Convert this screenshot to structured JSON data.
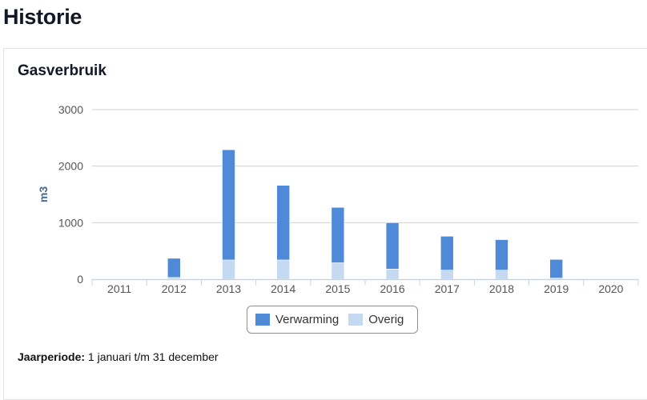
{
  "page": {
    "title": "Historie"
  },
  "card": {
    "title": "Gasverbruik"
  },
  "legend": {
    "items": [
      {
        "label": "Verwarming",
        "color": "#4f8ad8"
      },
      {
        "label": "Overig",
        "color": "#c5d9f3"
      }
    ]
  },
  "footnote": {
    "label": "Jaarperiode:",
    "value": " 1 januari t/m 31 december"
  },
  "chart_data": {
    "type": "bar",
    "stacked": true,
    "categories": [
      "2011",
      "2012",
      "2013",
      "2014",
      "2015",
      "2016",
      "2017",
      "2018",
      "2019",
      "2020"
    ],
    "series": [
      {
        "name": "Overig",
        "color": "#c5d9f3",
        "values": [
          0,
          30,
          340,
          340,
          290,
          180,
          160,
          160,
          20,
          0
        ]
      },
      {
        "name": "Verwarming",
        "color": "#4f8ad8",
        "values": [
          0,
          340,
          1950,
          1320,
          980,
          820,
          600,
          540,
          330,
          0
        ]
      }
    ],
    "ylabel": "m3",
    "ylim": [
      0,
      3000
    ],
    "yticks": [
      0,
      1000,
      2000,
      3000
    ],
    "grid": true,
    "legend_position": "bottom"
  }
}
